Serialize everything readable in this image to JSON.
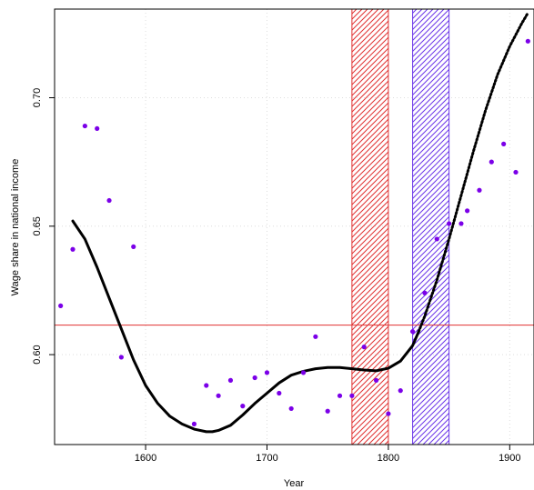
{
  "chart_data": {
    "type": "scatter",
    "title": "",
    "xlabel": "Year",
    "ylabel": "Wage share in national income",
    "xlim": [
      1525,
      1920
    ],
    "ylim": [
      0.565,
      0.7345
    ],
    "x_ticks": [
      1600,
      1700,
      1800,
      1900
    ],
    "y_ticks": [
      0.6,
      0.65,
      0.7
    ],
    "x_tick_labels": [
      "1600",
      "1700",
      "1800",
      "1900"
    ],
    "y_tick_labels": [
      "0.60",
      "0.65",
      "0.70"
    ],
    "grid": true,
    "colors": {
      "points": "#7b00e8",
      "curve": "#000000",
      "hline": "#e03030",
      "band_red": "#e03030",
      "band_blue": "#6a35e8",
      "grid": "#dddddd"
    },
    "points": [
      {
        "x": 1530,
        "y": 0.619
      },
      {
        "x": 1540,
        "y": 0.641
      },
      {
        "x": 1550,
        "y": 0.689
      },
      {
        "x": 1560,
        "y": 0.688
      },
      {
        "x": 1570,
        "y": 0.66
      },
      {
        "x": 1580,
        "y": 0.599
      },
      {
        "x": 1590,
        "y": 0.642
      },
      {
        "x": 1640,
        "y": 0.573
      },
      {
        "x": 1650,
        "y": 0.588
      },
      {
        "x": 1660,
        "y": 0.584
      },
      {
        "x": 1670,
        "y": 0.59
      },
      {
        "x": 1680,
        "y": 0.58
      },
      {
        "x": 1690,
        "y": 0.591
      },
      {
        "x": 1700,
        "y": 0.593
      },
      {
        "x": 1710,
        "y": 0.585
      },
      {
        "x": 1720,
        "y": 0.579
      },
      {
        "x": 1730,
        "y": 0.593
      },
      {
        "x": 1740,
        "y": 0.607
      },
      {
        "x": 1750,
        "y": 0.578
      },
      {
        "x": 1760,
        "y": 0.584
      },
      {
        "x": 1770,
        "y": 0.584
      },
      {
        "x": 1780,
        "y": 0.603
      },
      {
        "x": 1790,
        "y": 0.59
      },
      {
        "x": 1800,
        "y": 0.577
      },
      {
        "x": 1810,
        "y": 0.586
      },
      {
        "x": 1820,
        "y": 0.609
      },
      {
        "x": 1830,
        "y": 0.624
      },
      {
        "x": 1840,
        "y": 0.645
      },
      {
        "x": 1850,
        "y": 0.651
      },
      {
        "x": 1860,
        "y": 0.651
      },
      {
        "x": 1865,
        "y": 0.656
      },
      {
        "x": 1875,
        "y": 0.664
      },
      {
        "x": 1885,
        "y": 0.675
      },
      {
        "x": 1895,
        "y": 0.682
      },
      {
        "x": 1905,
        "y": 0.671
      },
      {
        "x": 1915,
        "y": 0.722
      }
    ],
    "curve_solid": [
      [
        1540,
        0.652
      ],
      [
        1550,
        0.645
      ],
      [
        1560,
        0.634
      ],
      [
        1570,
        0.622
      ],
      [
        1580,
        0.61
      ],
      [
        1590,
        0.598
      ],
      [
        1600,
        0.588
      ],
      [
        1610,
        0.581
      ],
      [
        1620,
        0.576
      ],
      [
        1630,
        0.573
      ],
      [
        1640,
        0.571
      ],
      [
        1650,
        0.57
      ],
      [
        1655,
        0.57
      ],
      [
        1660,
        0.5705
      ],
      [
        1670,
        0.5725
      ],
      [
        1680,
        0.5765
      ],
      [
        1690,
        0.581
      ],
      [
        1700,
        0.585
      ],
      [
        1710,
        0.589
      ],
      [
        1720,
        0.592
      ],
      [
        1730,
        0.5935
      ],
      [
        1740,
        0.5945
      ],
      [
        1750,
        0.595
      ],
      [
        1760,
        0.595
      ],
      [
        1770,
        0.5945
      ],
      [
        1780,
        0.594
      ],
      [
        1790,
        0.5937
      ],
      [
        1800,
        0.5947
      ],
      [
        1810,
        0.5975
      ],
      [
        1820,
        0.6035
      ],
      [
        1825,
        0.609
      ]
    ],
    "curve_dotted": [
      [
        1825,
        0.609
      ],
      [
        1830,
        0.615
      ],
      [
        1840,
        0.629
      ],
      [
        1850,
        0.645
      ],
      [
        1860,
        0.662
      ],
      [
        1870,
        0.679
      ],
      [
        1880,
        0.695
      ],
      [
        1890,
        0.709
      ],
      [
        1900,
        0.72
      ],
      [
        1910,
        0.729
      ],
      [
        1915,
        0.733
      ]
    ],
    "hline_y": 0.6115,
    "bands": [
      {
        "x_start": 1770,
        "x_end": 1800,
        "color": "#e03030"
      },
      {
        "x_start": 1820,
        "x_end": 1850,
        "color": "#6a35e8"
      }
    ]
  }
}
